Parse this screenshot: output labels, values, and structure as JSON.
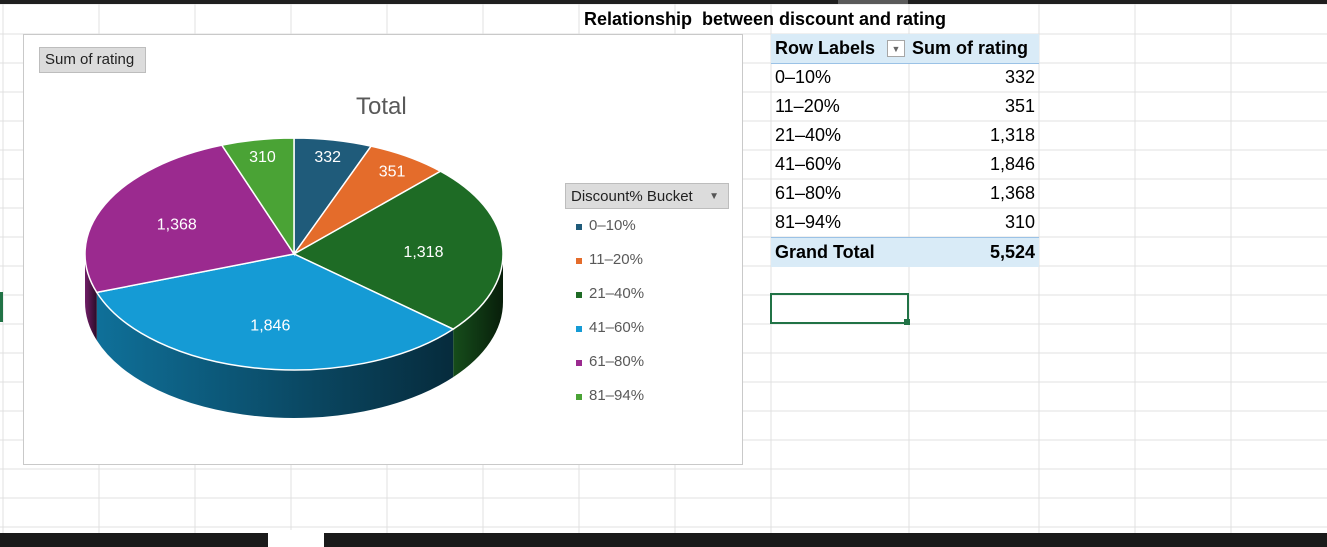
{
  "sheet": {
    "title": "Relationship  between discount and rating"
  },
  "chart": {
    "field_button": "Sum of rating",
    "title": "Total",
    "legend_button": "Discount% Bucket",
    "legend_dropdown_icon": "chevron-down-icon",
    "legend": [
      {
        "label": "0–10%",
        "color": "#1f5b7a"
      },
      {
        "label": "11–20%",
        "color": "#e46c2b"
      },
      {
        "label": "21–40%",
        "color": "#1e6b25"
      },
      {
        "label": "41–60%",
        "color": "#159bd5"
      },
      {
        "label": "61–80%",
        "color": "#9b2a8f"
      },
      {
        "label": "81–94%",
        "color": "#4aa335"
      }
    ]
  },
  "chart_data": {
    "type": "pie",
    "title": "Total",
    "categories": [
      "0–10%",
      "11–20%",
      "21–40%",
      "41–60%",
      "61–80%",
      "81–94%"
    ],
    "values": [
      332,
      351,
      1318,
      1846,
      1368,
      310
    ],
    "data_labels": [
      "332",
      "351",
      "1,318",
      "1,846",
      "1,368",
      "310"
    ],
    "colors": [
      "#1f5b7a",
      "#e46c2b",
      "#1e6b25",
      "#159bd5",
      "#9b2a8f",
      "#4aa335"
    ],
    "style": "3d",
    "legend_position": "right"
  },
  "pivot": {
    "header_row_labels": "Row Labels",
    "header_values": "Sum of rating",
    "filter_icon": "filter-dropdown-icon",
    "rows": [
      {
        "label": "0–10%",
        "value": "332"
      },
      {
        "label": "11–20%",
        "value": "351"
      },
      {
        "label": "21–40%",
        "value": "1,318"
      },
      {
        "label": "41–60%",
        "value": "1,846"
      },
      {
        "label": "61–80%",
        "value": "1,368"
      },
      {
        "label": "81–94%",
        "value": "310"
      }
    ],
    "total_label": "Grand Total",
    "total_value": "5,524"
  }
}
